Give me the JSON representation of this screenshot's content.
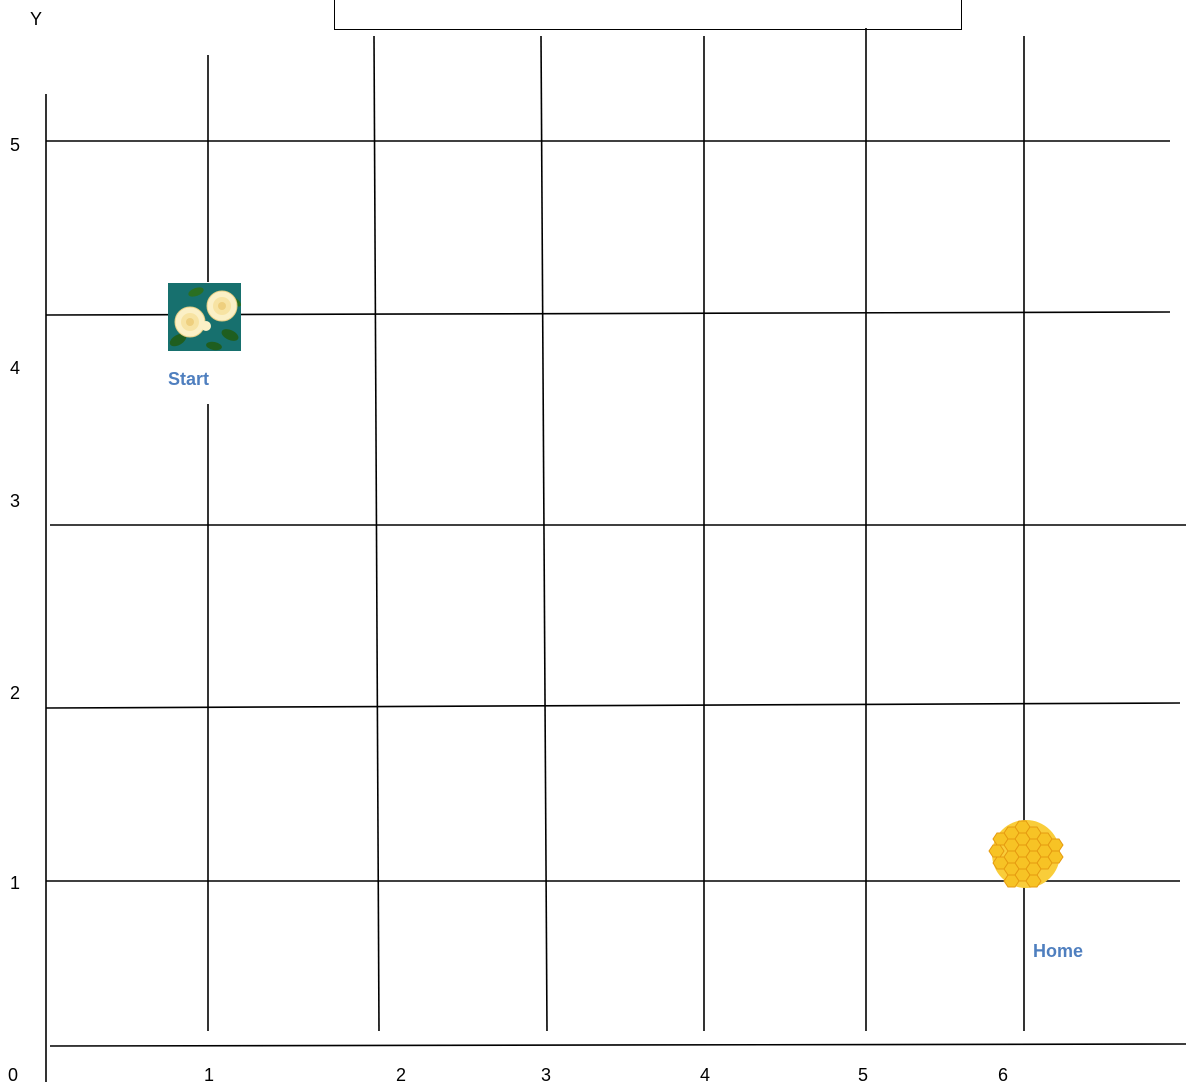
{
  "axis": {
    "y_title": "Y",
    "origin_label": "0",
    "x_ticks": [
      "1",
      "2",
      "3",
      "4",
      "5",
      "6"
    ],
    "y_ticks": [
      "1",
      "2",
      "3",
      "4",
      "5"
    ]
  },
  "markers": {
    "start_label": "Start",
    "home_label": "Home",
    "start_icon": "roses-icon",
    "home_icon": "honeycomb-icon"
  },
  "title_box": {
    "text": ""
  },
  "colors": {
    "grid": "#000000",
    "marker_label": "#4f7fbf",
    "honeycomb_fill": "#f7c325",
    "honeycomb_stroke": "#e59a10",
    "rose_background": "#17706e"
  }
}
